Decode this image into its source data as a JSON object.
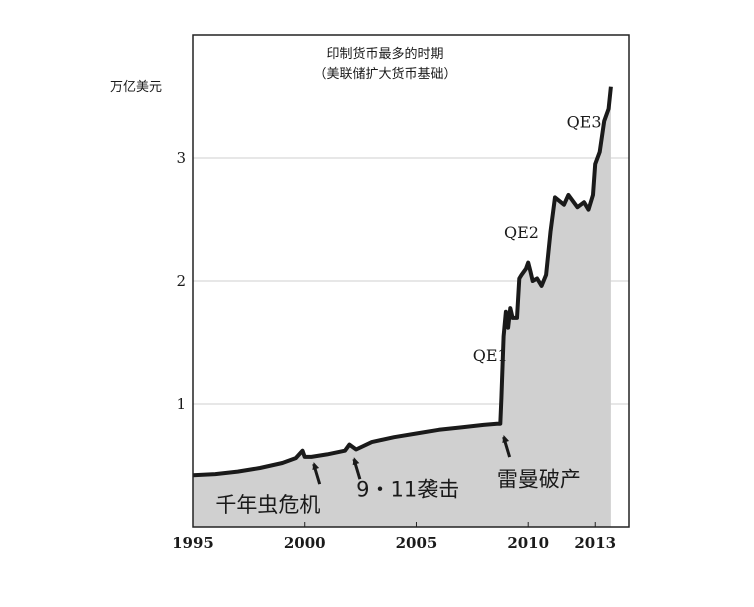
{
  "chart_data": {
    "type": "area",
    "title": "印制货币最多的时期",
    "subtitle": "（美联储扩大货币基础）",
    "ylabel": "万亿美元",
    "xlabel": "",
    "xlim": [
      1995,
      2014
    ],
    "ylim": [
      0,
      4
    ],
    "x_ticks": [
      1995,
      2000,
      2005,
      2010,
      2013
    ],
    "x_tick_labels": [
      "1995",
      "2000",
      "2005",
      "2010",
      "2013"
    ],
    "y_ticks": [
      1,
      2,
      3
    ],
    "y_tick_labels": [
      "1",
      "2",
      "3"
    ],
    "grid": "horizontal",
    "x": [
      1995.0,
      1996.0,
      1997.0,
      1998.0,
      1999.0,
      1999.6,
      1999.9,
      2000.0,
      2000.3,
      2001.0,
      2001.8,
      2002.0,
      2002.3,
      2003.0,
      2004.0,
      2005.0,
      2006.0,
      2007.0,
      2008.0,
      2008.6,
      2008.75,
      2008.8,
      2008.9,
      2009.0,
      2009.1,
      2009.2,
      2009.3,
      2009.5,
      2009.6,
      2009.7,
      2009.9,
      2010.0,
      2010.1,
      2010.2,
      2010.4,
      2010.6,
      2010.8,
      2011.0,
      2011.2,
      2011.4,
      2011.6,
      2011.8,
      2012.0,
      2012.2,
      2012.5,
      2012.7,
      2012.9,
      2013.0,
      2013.2,
      2013.4,
      2013.6,
      2013.7
    ],
    "values": [
      0.42,
      0.43,
      0.45,
      0.48,
      0.52,
      0.56,
      0.62,
      0.57,
      0.57,
      0.59,
      0.62,
      0.67,
      0.63,
      0.69,
      0.73,
      0.76,
      0.79,
      0.81,
      0.83,
      0.84,
      0.84,
      1.05,
      1.55,
      1.75,
      1.62,
      1.78,
      1.7,
      1.7,
      2.02,
      2.05,
      2.1,
      2.15,
      2.08,
      2.0,
      2.02,
      1.96,
      2.05,
      2.4,
      2.68,
      2.65,
      2.62,
      2.7,
      2.65,
      2.6,
      2.64,
      2.58,
      2.7,
      2.95,
      3.05,
      3.3,
      3.4,
      3.58
    ],
    "series_color": "#1a1a1a",
    "fill_color": "#d0d0d0",
    "annotations": [
      {
        "text": "QE1",
        "x": 2008.3,
        "y": 1.35
      },
      {
        "text": "QE2",
        "x": 2009.7,
        "y": 2.35
      },
      {
        "text": "QE3",
        "x": 2012.5,
        "y": 3.25
      }
    ],
    "events": [
      {
        "text": "千年虫危机",
        "arrow_x": 2000.4,
        "arrow_y": 0.56,
        "label_x": 1996.0,
        "label_y": 0.12
      },
      {
        "text": "9・11袭击",
        "arrow_x": 2002.2,
        "arrow_y": 0.6,
        "label_x": 2002.3,
        "label_y": 0.25
      },
      {
        "text": "雷曼破产",
        "arrow_x": 2008.9,
        "arrow_y": 0.78,
        "label_x": 2008.6,
        "label_y": 0.33
      }
    ]
  }
}
